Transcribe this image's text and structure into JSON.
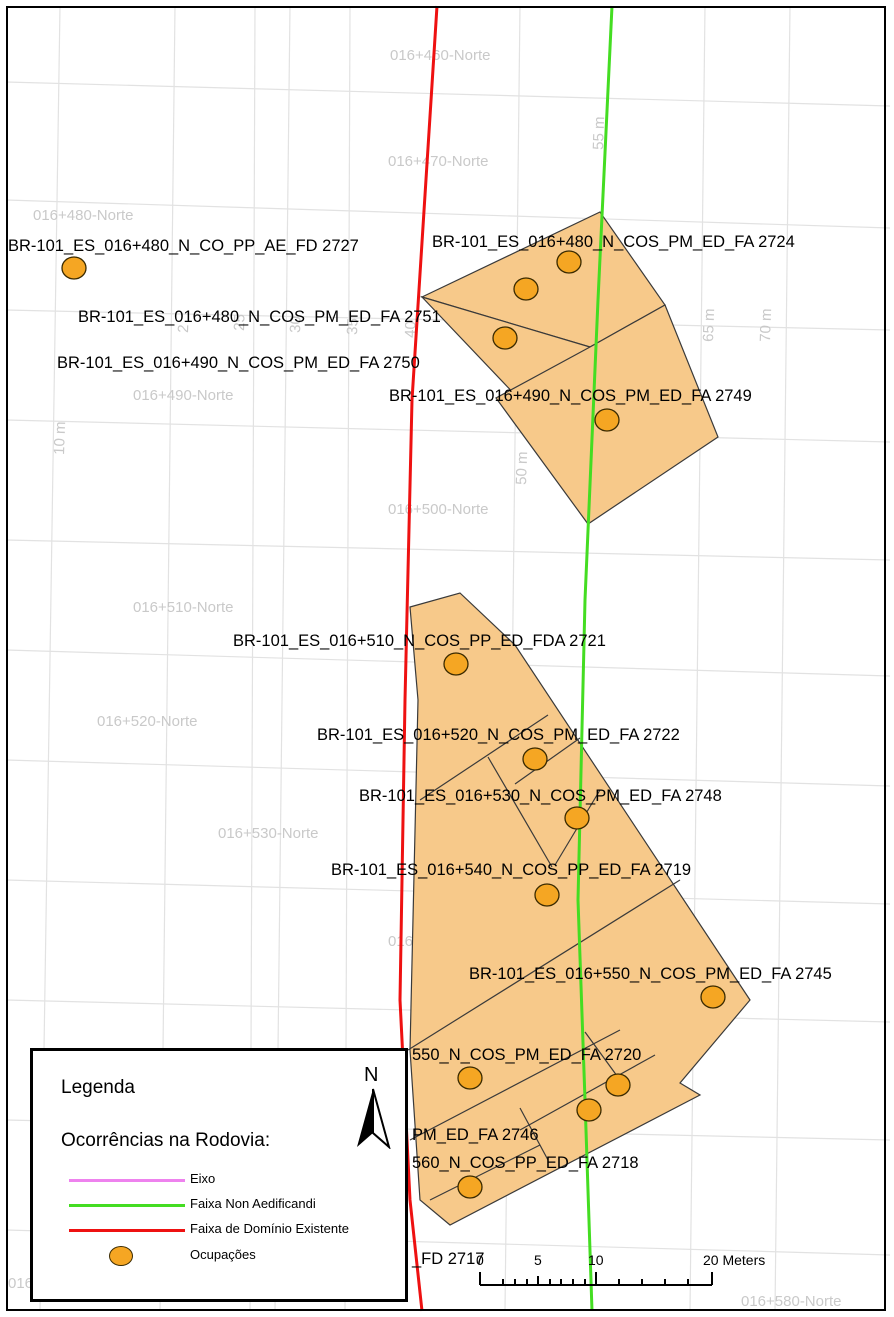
{
  "ghost_labels": [
    "016+460-Norte",
    "016+470-Norte",
    "016+480-Norte",
    "016+490-Norte",
    "016+500-Norte",
    "016+510-Norte",
    "016+520-Norte",
    "016+530-Norte",
    "016+540-Norte",
    "016+580-Norte",
    "016+570-Norte",
    "55 m",
    "65 m",
    "70 m",
    "60",
    "50 m",
    "40",
    "35",
    "30",
    "25",
    "10 m"
  ],
  "occurrences": [
    "BR-101_ES_016+480_N_CO_PP_AE_FD 2727",
    "BR-101_ES_016+480_N_COS_PM_ED_FA 2724",
    "BR-101_ES_016+480_N_COS_PM_ED_FA 2751",
    "BR-101_ES_016+490_N_COS_PM_ED_FA 2750",
    "BR-101_ES_016+490_N_COS_PM_ED_FA 2749",
    "BR-101_ES_016+510_N_COS_PP_ED_FDA 2721",
    "BR-101_ES_016+520_N_COS_PM_ED_FA 2722",
    "BR-101_ES_016+530_N_COS_PM_ED_FA 2748",
    "BR-101_ES_016+540_N_COS_PP_ED_FA 2719",
    "BR-101_ES_016+550_N_COS_PM_ED_FA 2745",
    "550_N_COS_PM_ED_FA 2720",
    "PM_ED_FA 2746",
    "560_N_COS_PP_ED_FA 2718",
    "_FD 2717"
  ],
  "scale_bar": {
    "ticks": [
      "0",
      "5",
      "10",
      "20 Meters"
    ]
  },
  "legend": {
    "title": "Legenda",
    "subtitle": "Ocorrências na Rodovia:",
    "north": "N",
    "items": [
      {
        "label": "Eixo",
        "color": "#ee82ee",
        "kind": "line"
      },
      {
        "label": "Faixa Non Aedificandi",
        "color": "#44dd22",
        "kind": "line"
      },
      {
        "label": "Faixa de Domínio Existente",
        "color": "#ee1111",
        "kind": "line"
      },
      {
        "label": "Ocupações",
        "color": "#f5a623",
        "kind": "point"
      }
    ]
  },
  "colors": {
    "parcel_fill": "#f7c98a",
    "point_fill": "#f5a623",
    "grid": "#e2e2e2",
    "ghost_text": "#c9c9c9"
  }
}
